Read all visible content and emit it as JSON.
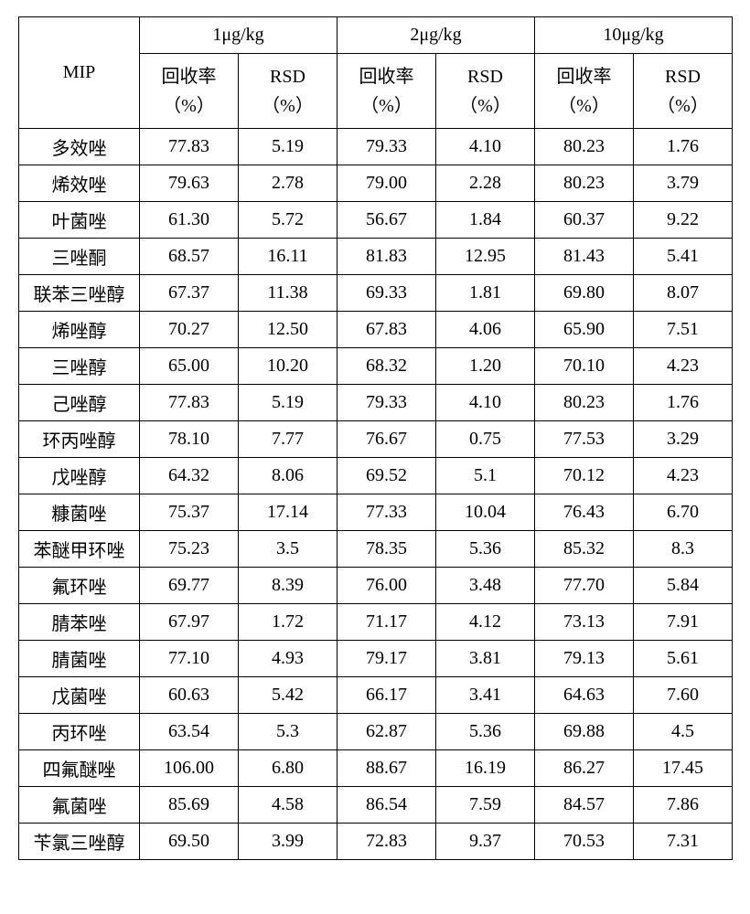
{
  "header": {
    "mip": "MIP",
    "groups": [
      "1μg/kg",
      "2μg/kg",
      "10μg/kg"
    ],
    "sub_recovery_l1": "回收率",
    "sub_recovery_l2": "（%）",
    "sub_rsd_l1": "RSD",
    "sub_rsd_l2": "（%）"
  },
  "rows": [
    {
      "name": "多效唑",
      "v": [
        "77.83",
        "5.19",
        "79.33",
        "4.10",
        "80.23",
        "1.76"
      ]
    },
    {
      "name": "烯效唑",
      "v": [
        "79.63",
        "2.78",
        "79.00",
        "2.28",
        "80.23",
        "3.79"
      ]
    },
    {
      "name": "叶菌唑",
      "v": [
        "61.30",
        "5.72",
        "56.67",
        "1.84",
        "60.37",
        "9.22"
      ]
    },
    {
      "name": "三唑酮",
      "v": [
        "68.57",
        "16.11",
        "81.83",
        "12.95",
        "81.43",
        "5.41"
      ]
    },
    {
      "name": "联苯三唑醇",
      "v": [
        "67.37",
        "11.38",
        "69.33",
        "1.81",
        "69.80",
        "8.07"
      ]
    },
    {
      "name": "烯唑醇",
      "v": [
        "70.27",
        "12.50",
        "67.83",
        "4.06",
        "65.90",
        "7.51"
      ]
    },
    {
      "name": "三唑醇",
      "v": [
        "65.00",
        "10.20",
        "68.32",
        "1.20",
        "70.10",
        "4.23"
      ]
    },
    {
      "name": "己唑醇",
      "v": [
        "77.83",
        "5.19",
        "79.33",
        "4.10",
        "80.23",
        "1.76"
      ]
    },
    {
      "name": "环丙唑醇",
      "v": [
        "78.10",
        "7.77",
        "76.67",
        "0.75",
        "77.53",
        "3.29"
      ]
    },
    {
      "name": "戊唑醇",
      "v": [
        "64.32",
        "8.06",
        "69.52",
        "5.1",
        "70.12",
        "4.23"
      ]
    },
    {
      "name": "糠菌唑",
      "v": [
        "75.37",
        "17.14",
        "77.33",
        "10.04",
        "76.43",
        "6.70"
      ]
    },
    {
      "name": "苯醚甲环唑",
      "v": [
        "75.23",
        "3.5",
        "78.35",
        "5.36",
        "85.32",
        "8.3"
      ]
    },
    {
      "name": "氟环唑",
      "v": [
        "69.77",
        "8.39",
        "76.00",
        "3.48",
        "77.70",
        "5.84"
      ]
    },
    {
      "name": "腈苯唑",
      "v": [
        "67.97",
        "1.72",
        "71.17",
        "4.12",
        "73.13",
        "7.91"
      ]
    },
    {
      "name": "腈菌唑",
      "v": [
        "77.10",
        "4.93",
        "79.17",
        "3.81",
        "79.13",
        "5.61"
      ]
    },
    {
      "name": "戊菌唑",
      "v": [
        "60.63",
        "5.42",
        "66.17",
        "3.41",
        "64.63",
        "7.60"
      ]
    },
    {
      "name": "丙环唑",
      "v": [
        "63.54",
        "5.3",
        "62.87",
        "5.36",
        "69.88",
        "4.5"
      ]
    },
    {
      "name": "四氟醚唑",
      "v": [
        "106.00",
        "6.80",
        "88.67",
        "16.19",
        "86.27",
        "17.45"
      ]
    },
    {
      "name": "氟菌唑",
      "v": [
        "85.69",
        "4.58",
        "86.54",
        "7.59",
        "84.57",
        "7.86"
      ]
    },
    {
      "name": "苄氯三唑醇",
      "v": [
        "69.50",
        "3.99",
        "72.83",
        "9.37",
        "70.53",
        "7.31"
      ]
    }
  ]
}
